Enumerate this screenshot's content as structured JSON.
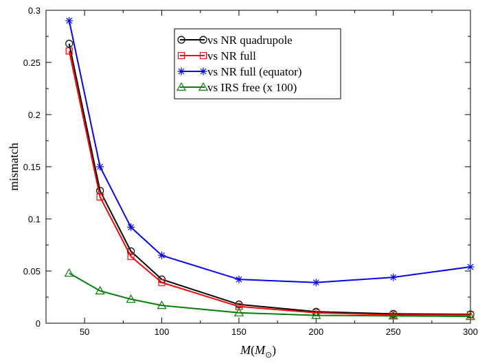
{
  "chart_data": {
    "type": "line",
    "xlabel_main": "M",
    "xlabel_unit": "M",
    "xlabel_unit_sub": "⊙",
    "ylabel": "mismatch",
    "xlim": [
      25,
      300
    ],
    "ylim": [
      0,
      0.3
    ],
    "x_ticks": [
      50,
      100,
      150,
      200,
      250,
      300
    ],
    "y_ticks": [
      0,
      0.05,
      0.1,
      0.15,
      0.2,
      0.25,
      0.3
    ],
    "y_tick_labels": [
      "0",
      "0.05",
      "0.1",
      "0.15",
      "0.2",
      "0.25",
      "0.3"
    ],
    "x": [
      40,
      60,
      80,
      100,
      150,
      200,
      250,
      300
    ],
    "legend_position": "top-center",
    "series": [
      {
        "name": "vs NR quadrupole",
        "color": "#000000",
        "marker": "circle",
        "values": [
          0.268,
          0.127,
          0.069,
          0.042,
          0.018,
          0.011,
          0.009,
          0.0085
        ]
      },
      {
        "name": "vs NR full",
        "color": "#ff0000",
        "marker": "square",
        "values": [
          0.261,
          0.121,
          0.064,
          0.039,
          0.016,
          0.01,
          0.008,
          0.008
        ]
      },
      {
        "name": "vs NR full (equator)",
        "color": "#0000ff",
        "marker": "star",
        "values": [
          0.29,
          0.15,
          0.092,
          0.065,
          0.042,
          0.039,
          0.044,
          0.054
        ]
      },
      {
        "name": "vs IRS free (x 100)",
        "color": "#008000",
        "marker": "triangle",
        "values": [
          0.048,
          0.031,
          0.023,
          0.017,
          0.01,
          0.0075,
          0.007,
          0.0065
        ]
      }
    ]
  }
}
